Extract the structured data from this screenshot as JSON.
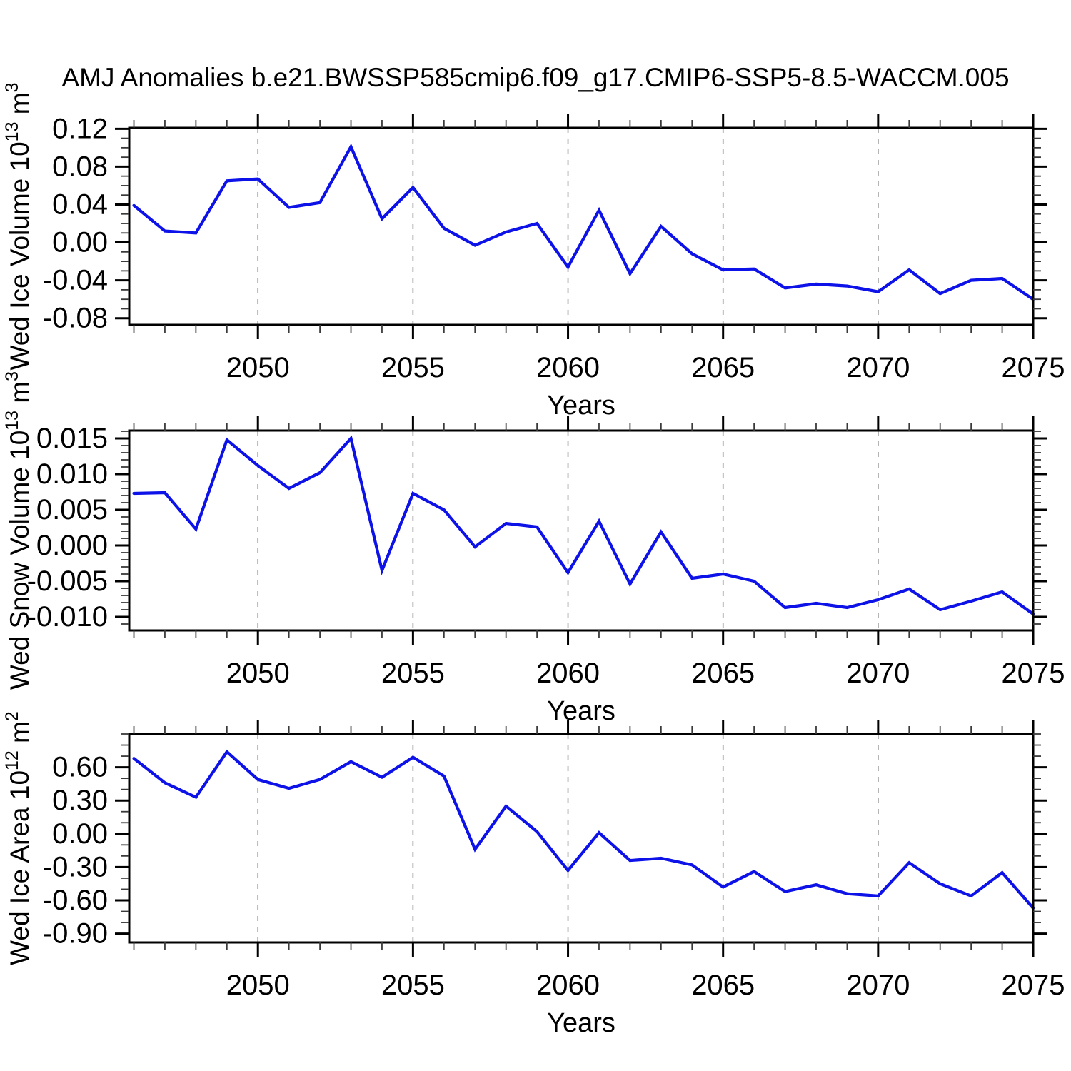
{
  "title": "AMJ Anomalies b.e21.BWSSP585cmip6.f09_g17.CMIP6-SSP5-8.5-WACCM.005",
  "colors": {
    "line": "#0d12e8",
    "grid": "#8c8c8c",
    "axis": "#000000",
    "minor_tick": "#3a3a3a",
    "background": "#ffffff"
  },
  "chart_data": [
    {
      "type": "line",
      "ylabel": "Wed Ice Volume 10^13 m^3",
      "ylabel_parts": [
        {
          "text": "Wed Ice Volume 10",
          "sup": false
        },
        {
          "text": "13",
          "sup": true
        },
        {
          "text": " m",
          "sup": false
        },
        {
          "text": "3",
          "sup": true
        }
      ],
      "xlabel": "Years",
      "x": [
        2046,
        2047,
        2048,
        2049,
        2050,
        2051,
        2052,
        2053,
        2054,
        2055,
        2056,
        2057,
        2058,
        2059,
        2060,
        2061,
        2062,
        2063,
        2064,
        2065,
        2066,
        2067,
        2068,
        2069,
        2070,
        2071,
        2072,
        2073,
        2074,
        2075
      ],
      "values": [
        0.039,
        0.012,
        0.01,
        0.065,
        0.067,
        0.037,
        0.042,
        0.101,
        0.025,
        0.058,
        0.015,
        -0.003,
        0.011,
        0.02,
        -0.026,
        0.034,
        -0.033,
        0.017,
        -0.012,
        -0.029,
        -0.028,
        -0.048,
        -0.044,
        -0.046,
        -0.052,
        -0.029,
        -0.054,
        -0.04,
        -0.038,
        -0.06
      ],
      "xlim": [
        2045.85,
        2075.0
      ],
      "ylim": [
        -0.087,
        0.121
      ],
      "yticks": [
        0.12,
        0.08,
        0.04,
        0.0,
        -0.04,
        -0.08
      ],
      "ytick_labels": [
        "0.12",
        "0.08",
        "0.04",
        "0.00",
        "-0.04",
        "-0.08"
      ],
      "yminor_step": 0.01,
      "xticks": [
        2050,
        2055,
        2060,
        2065,
        2070,
        2075
      ],
      "xtick_labels": [
        "2050",
        "2055",
        "2060",
        "2065",
        "2070",
        "2075"
      ],
      "xminor_step": 1,
      "gridlines_x": [
        2050,
        2055,
        2060,
        2065,
        2070
      ],
      "grid": "vertical-dashed"
    },
    {
      "type": "line",
      "ylabel": "Wed Snow Volume 10^13 m^3",
      "ylabel_parts": [
        {
          "text": "Wed Snow Volume 10",
          "sup": false
        },
        {
          "text": "13",
          "sup": true
        },
        {
          "text": " m",
          "sup": false
        },
        {
          "text": "3",
          "sup": true
        }
      ],
      "xlabel": "Years",
      "x": [
        2046,
        2047,
        2048,
        2049,
        2050,
        2051,
        2052,
        2053,
        2054,
        2055,
        2056,
        2057,
        2058,
        2059,
        2060,
        2061,
        2062,
        2063,
        2064,
        2065,
        2066,
        2067,
        2068,
        2069,
        2070,
        2071,
        2072,
        2073,
        2074,
        2075
      ],
      "values": [
        0.0073,
        0.0074,
        0.0023,
        0.0148,
        0.0112,
        0.008,
        0.0102,
        0.015,
        -0.0035,
        0.0073,
        0.005,
        -0.0002,
        0.0031,
        0.0026,
        -0.0038,
        0.0034,
        -0.0054,
        0.0019,
        -0.0046,
        -0.004,
        -0.005,
        -0.0087,
        -0.0081,
        -0.0087,
        -0.0076,
        -0.0061,
        -0.009,
        -0.0078,
        -0.0065,
        -0.0096
      ],
      "xlim": [
        2045.85,
        2075.0
      ],
      "ylim": [
        -0.0119,
        0.0161
      ],
      "yticks": [
        0.015,
        0.01,
        0.005,
        0.0,
        -0.005,
        -0.01
      ],
      "ytick_labels": [
        "0.015",
        "0.010",
        "0.005",
        "0.000",
        "-0.005",
        "-0.010"
      ],
      "yminor_step": 0.001,
      "xticks": [
        2050,
        2055,
        2060,
        2065,
        2070,
        2075
      ],
      "xtick_labels": [
        "2050",
        "2055",
        "2060",
        "2065",
        "2070",
        "2075"
      ],
      "xminor_step": 1,
      "gridlines_x": [
        2050,
        2055,
        2060,
        2065,
        2070
      ],
      "grid": "vertical-dashed"
    },
    {
      "type": "line",
      "ylabel": "Wed Ice Area 10^12 m^2",
      "ylabel_parts": [
        {
          "text": "Wed Ice Area 10",
          "sup": false
        },
        {
          "text": "12",
          "sup": true
        },
        {
          "text": " m",
          "sup": false
        },
        {
          "text": "2",
          "sup": true
        }
      ],
      "xlabel": "Years",
      "x": [
        2046,
        2047,
        2048,
        2049,
        2050,
        2051,
        2052,
        2053,
        2054,
        2055,
        2056,
        2057,
        2058,
        2059,
        2060,
        2061,
        2062,
        2063,
        2064,
        2065,
        2066,
        2067,
        2068,
        2069,
        2070,
        2071,
        2072,
        2073,
        2074,
        2075
      ],
      "values": [
        0.68,
        0.46,
        0.33,
        0.74,
        0.49,
        0.41,
        0.49,
        0.65,
        0.51,
        0.69,
        0.52,
        -0.14,
        0.25,
        0.02,
        -0.33,
        0.01,
        -0.24,
        -0.22,
        -0.28,
        -0.48,
        -0.34,
        -0.52,
        -0.46,
        -0.54,
        -0.56,
        -0.26,
        -0.45,
        -0.56,
        -0.35,
        -0.67
      ],
      "xlim": [
        2045.85,
        2075.0
      ],
      "ylim": [
        -0.98,
        0.9
      ],
      "yticks": [
        0.6,
        0.3,
        0.0,
        -0.3,
        -0.6,
        -0.9
      ],
      "ytick_labels": [
        "0.60",
        "0.30",
        "0.00",
        "-0.30",
        "-0.60",
        "-0.90"
      ],
      "yminor_step": 0.1,
      "xticks": [
        2050,
        2055,
        2060,
        2065,
        2070,
        2075
      ],
      "xtick_labels": [
        "2050",
        "2055",
        "2060",
        "2065",
        "2070",
        "2075"
      ],
      "xminor_step": 1,
      "gridlines_x": [
        2050,
        2055,
        2060,
        2065,
        2070
      ],
      "grid": "vertical-dashed"
    }
  ]
}
